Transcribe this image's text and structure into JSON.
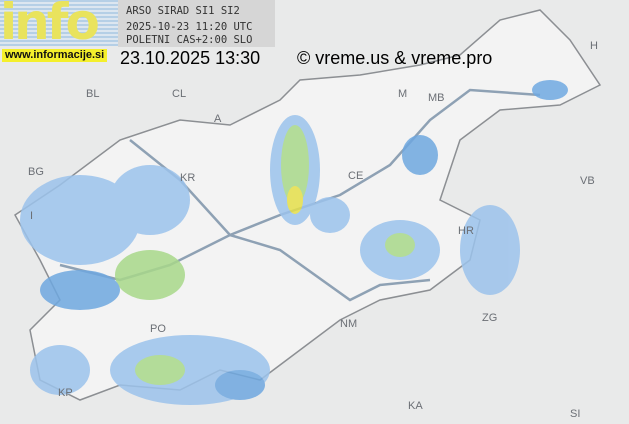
{
  "header": {
    "line1": "ARSO SIRAD SI1 SI2",
    "line2": "2025-10-23 11:20 UTC",
    "line3": "POLETNI CAS+2:00 SLO",
    "timestamp": "23.10.2025 13:30",
    "copyright": "© vreme.us & vreme.pro"
  },
  "logo": {
    "text": "info",
    "site": "www.informacije.si"
  },
  "map_labels": [
    "BL",
    "CL",
    "A",
    "H",
    "BG",
    "KR",
    "I",
    "CE",
    "HR",
    "ZG",
    "KA",
    "PO",
    "NM",
    "KP",
    "M",
    "MB",
    "SI",
    "VB"
  ],
  "colors": {
    "background": "#e9eaea",
    "land": "#f1f1f1",
    "border": "#8c8f93",
    "road": "#8ea1b4",
    "radar_light": "#9cc3ec",
    "radar_mid": "#6fa8e0",
    "radar_green": "#a8d88a",
    "radar_yellow": "#e6e04a"
  }
}
